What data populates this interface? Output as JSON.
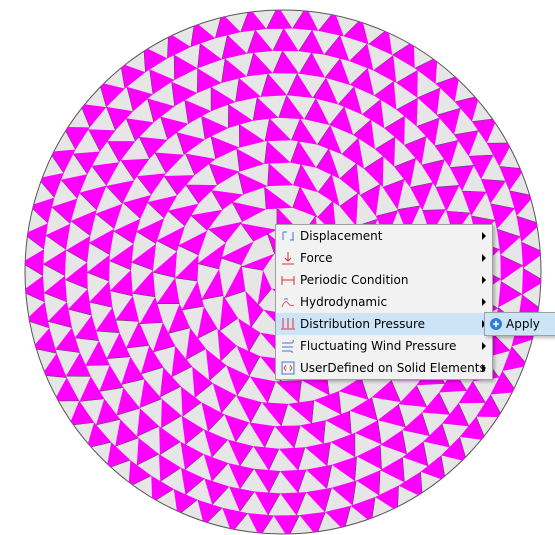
{
  "context_menu": {
    "items": [
      "Displacement",
      "Force",
      "Periodic Condition",
      "Hydrodynamic",
      "Distribution Pressure",
      "Fluctuating Wind Pressure",
      "UserDefined on Solid Elements"
    ]
  },
  "submenu": {
    "items": [
      "Apply"
    ]
  }
}
